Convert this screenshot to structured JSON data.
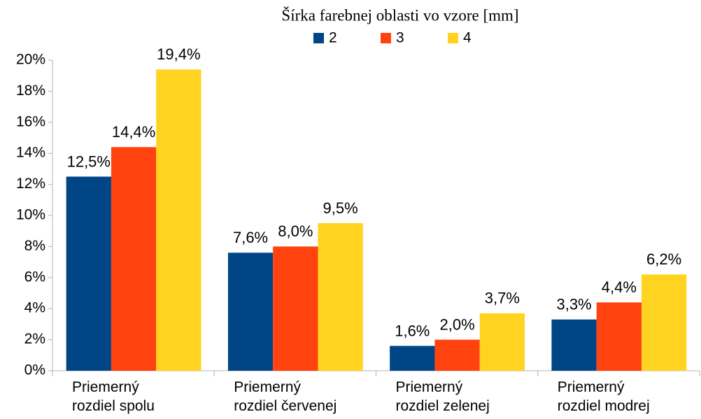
{
  "chart_data": {
    "type": "bar",
    "legend_title": "Šírka farebnej oblasti vo vzore [mm]",
    "categories": [
      "Priemerný\nrozdiel spolu",
      "Priemerný\nrozdiel červenej",
      "Priemerný\nrozdiel zelenej",
      "Priemerný\nrozdiel modrej"
    ],
    "series": [
      {
        "name": "2",
        "color": "#004586",
        "values": [
          12.5,
          7.6,
          1.6,
          3.3
        ],
        "value_labels": [
          "12,5%",
          "7,6%",
          "1,6%",
          "3,3%"
        ]
      },
      {
        "name": "3",
        "color": "#ff420e",
        "values": [
          14.4,
          8.0,
          2.0,
          4.4
        ],
        "value_labels": [
          "14,4%",
          "8,0%",
          "2,0%",
          "4,4%"
        ]
      },
      {
        "name": "4",
        "color": "#ffd320",
        "values": [
          19.4,
          9.5,
          3.7,
          6.2
        ],
        "value_labels": [
          "19,4%",
          "9,5%",
          "3,7%",
          "6,2%"
        ]
      }
    ],
    "ylim": [
      0,
      20
    ],
    "yticks": [
      {
        "value": 0,
        "label": "0%"
      },
      {
        "value": 2,
        "label": "2%"
      },
      {
        "value": 4,
        "label": "4%"
      },
      {
        "value": 6,
        "label": "6%"
      },
      {
        "value": 8,
        "label": "8%"
      },
      {
        "value": 10,
        "label": "10%"
      },
      {
        "value": 12,
        "label": "12%"
      },
      {
        "value": 14,
        "label": "14%"
      },
      {
        "value": 16,
        "label": "16%"
      },
      {
        "value": 18,
        "label": "18%"
      },
      {
        "value": 20,
        "label": "20%"
      }
    ],
    "grid": false,
    "legend": "top"
  }
}
